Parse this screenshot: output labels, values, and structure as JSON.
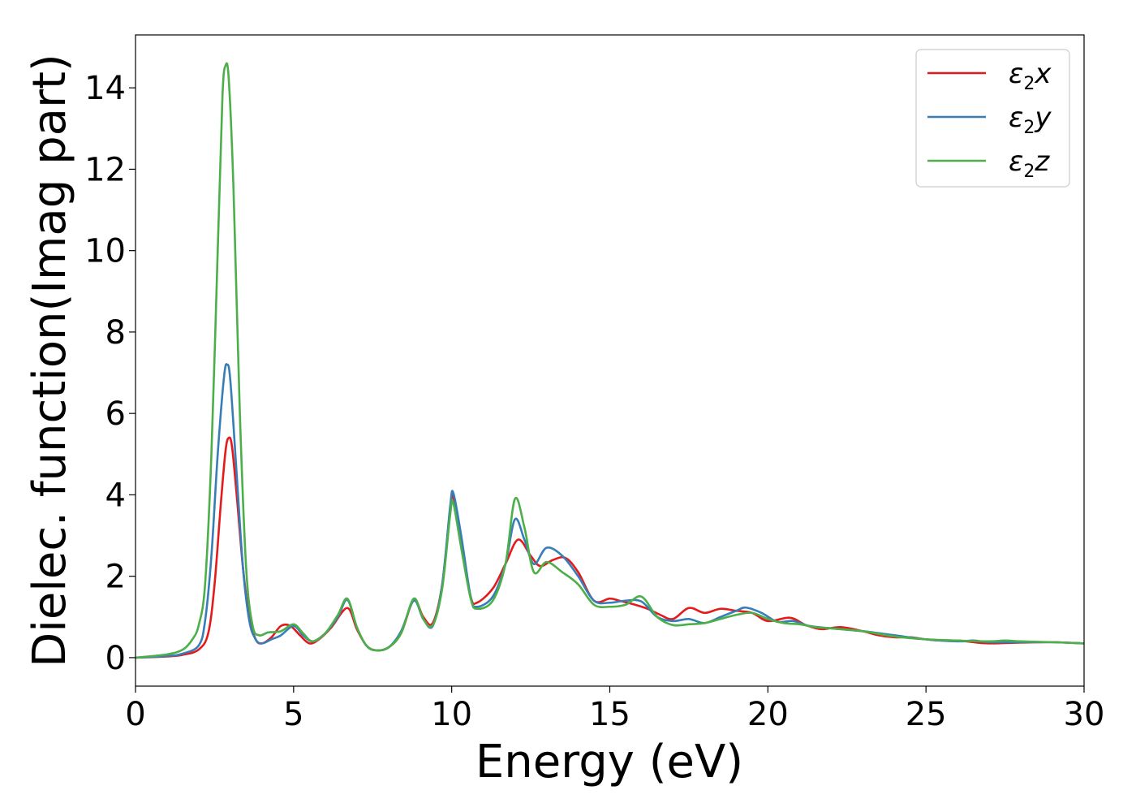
{
  "chart_data": {
    "type": "line",
    "xlabel": "Energy (eV)",
    "ylabel": "Dielec. function(Imag part)",
    "xlim": [
      0,
      30
    ],
    "ylim": [
      -0.7,
      15.3
    ],
    "xticks": [
      0,
      5,
      10,
      15,
      20,
      25,
      30
    ],
    "yticks": [
      0,
      2,
      4,
      6,
      8,
      10,
      12,
      14
    ],
    "grid": false,
    "legend_position": "top-right",
    "series": [
      {
        "name": "ε2x",
        "symbol": "ε",
        "sub": "2",
        "suffix": "x",
        "color": "#e41a1c",
        "points": [
          [
            0,
            0.0
          ],
          [
            1,
            0.03
          ],
          [
            1.5,
            0.07
          ],
          [
            2,
            0.2
          ],
          [
            2.3,
            0.6
          ],
          [
            2.5,
            1.8
          ],
          [
            2.7,
            3.8
          ],
          [
            2.85,
            5.1
          ],
          [
            2.95,
            5.4
          ],
          [
            3.05,
            5.2
          ],
          [
            3.2,
            4.0
          ],
          [
            3.4,
            2.2
          ],
          [
            3.6,
            1.0
          ],
          [
            3.8,
            0.45
          ],
          [
            4.0,
            0.35
          ],
          [
            4.3,
            0.5
          ],
          [
            4.6,
            0.78
          ],
          [
            4.9,
            0.78
          ],
          [
            5.2,
            0.55
          ],
          [
            5.5,
            0.35
          ],
          [
            5.8,
            0.45
          ],
          [
            6.2,
            0.75
          ],
          [
            6.7,
            1.22
          ],
          [
            7.0,
            0.7
          ],
          [
            7.3,
            0.3
          ],
          [
            7.6,
            0.18
          ],
          [
            8.0,
            0.25
          ],
          [
            8.4,
            0.6
          ],
          [
            8.8,
            1.42
          ],
          [
            9.1,
            1.0
          ],
          [
            9.4,
            0.85
          ],
          [
            9.7,
            1.8
          ],
          [
            9.95,
            3.6
          ],
          [
            10.05,
            3.95
          ],
          [
            10.3,
            2.8
          ],
          [
            10.6,
            1.5
          ],
          [
            10.8,
            1.35
          ],
          [
            11.3,
            1.7
          ],
          [
            11.7,
            2.3
          ],
          [
            12.1,
            2.9
          ],
          [
            12.5,
            2.5
          ],
          [
            12.8,
            2.25
          ],
          [
            13.2,
            2.4
          ],
          [
            13.6,
            2.45
          ],
          [
            14.0,
            2.1
          ],
          [
            14.5,
            1.4
          ],
          [
            15.0,
            1.45
          ],
          [
            15.3,
            1.4
          ],
          [
            15.8,
            1.3
          ],
          [
            16.2,
            1.2
          ],
          [
            16.6,
            1.05
          ],
          [
            17.0,
            0.95
          ],
          [
            17.5,
            1.22
          ],
          [
            18.0,
            1.1
          ],
          [
            18.5,
            1.2
          ],
          [
            19.0,
            1.15
          ],
          [
            19.5,
            1.1
          ],
          [
            20.0,
            0.9
          ],
          [
            20.7,
            0.98
          ],
          [
            21.2,
            0.8
          ],
          [
            21.7,
            0.7
          ],
          [
            22.3,
            0.75
          ],
          [
            23.0,
            0.65
          ],
          [
            23.5,
            0.55
          ],
          [
            24.0,
            0.5
          ],
          [
            24.5,
            0.5
          ],
          [
            25.0,
            0.45
          ],
          [
            25.5,
            0.42
          ],
          [
            26.0,
            0.42
          ],
          [
            26.5,
            0.38
          ],
          [
            27.0,
            0.35
          ],
          [
            28.0,
            0.37
          ],
          [
            29.0,
            0.38
          ],
          [
            30.0,
            0.35
          ]
        ]
      },
      {
        "name": "ε2y",
        "symbol": "ε",
        "sub": "2",
        "suffix": "y",
        "color": "#377eb8",
        "points": [
          [
            0,
            0.0
          ],
          [
            1,
            0.04
          ],
          [
            1.5,
            0.1
          ],
          [
            2,
            0.3
          ],
          [
            2.2,
            0.9
          ],
          [
            2.4,
            2.5
          ],
          [
            2.6,
            5.0
          ],
          [
            2.8,
            6.9
          ],
          [
            2.9,
            7.2
          ],
          [
            3.0,
            6.8
          ],
          [
            3.2,
            4.5
          ],
          [
            3.4,
            2.2
          ],
          [
            3.6,
            0.9
          ],
          [
            3.8,
            0.45
          ],
          [
            4.0,
            0.35
          ],
          [
            4.3,
            0.45
          ],
          [
            4.6,
            0.55
          ],
          [
            5.0,
            0.78
          ],
          [
            5.3,
            0.55
          ],
          [
            5.6,
            0.4
          ],
          [
            6.0,
            0.6
          ],
          [
            6.4,
            1.0
          ],
          [
            6.7,
            1.42
          ],
          [
            7.0,
            0.75
          ],
          [
            7.3,
            0.3
          ],
          [
            7.6,
            0.18
          ],
          [
            8.0,
            0.25
          ],
          [
            8.4,
            0.65
          ],
          [
            8.8,
            1.4
          ],
          [
            9.1,
            0.95
          ],
          [
            9.4,
            0.78
          ],
          [
            9.7,
            1.8
          ],
          [
            9.95,
            3.7
          ],
          [
            10.05,
            4.05
          ],
          [
            10.3,
            3.0
          ],
          [
            10.6,
            1.5
          ],
          [
            10.8,
            1.25
          ],
          [
            11.3,
            1.5
          ],
          [
            11.7,
            2.3
          ],
          [
            12.0,
            3.4
          ],
          [
            12.3,
            2.9
          ],
          [
            12.6,
            2.3
          ],
          [
            13.0,
            2.7
          ],
          [
            13.5,
            2.5
          ],
          [
            14.0,
            2.0
          ],
          [
            14.5,
            1.4
          ],
          [
            15.0,
            1.35
          ],
          [
            15.5,
            1.4
          ],
          [
            16.0,
            1.38
          ],
          [
            16.5,
            1.0
          ],
          [
            17.0,
            0.9
          ],
          [
            17.5,
            0.95
          ],
          [
            18.0,
            0.85
          ],
          [
            18.5,
            1.0
          ],
          [
            19.0,
            1.15
          ],
          [
            19.3,
            1.23
          ],
          [
            19.8,
            1.1
          ],
          [
            20.3,
            0.88
          ],
          [
            20.8,
            0.9
          ],
          [
            21.3,
            0.78
          ],
          [
            22.0,
            0.72
          ],
          [
            23.0,
            0.65
          ],
          [
            24.0,
            0.55
          ],
          [
            25.0,
            0.45
          ],
          [
            26.0,
            0.4
          ],
          [
            26.5,
            0.42
          ],
          [
            27.0,
            0.38
          ],
          [
            28.0,
            0.38
          ],
          [
            29.0,
            0.38
          ],
          [
            30.0,
            0.35
          ]
        ]
      },
      {
        "name": "ε2z",
        "symbol": "ε",
        "sub": "2",
        "suffix": "z",
        "color": "#4daf4a",
        "points": [
          [
            0,
            0.0
          ],
          [
            1,
            0.08
          ],
          [
            1.5,
            0.2
          ],
          [
            1.8,
            0.45
          ],
          [
            2.0,
            0.8
          ],
          [
            2.2,
            1.8
          ],
          [
            2.4,
            5.0
          ],
          [
            2.6,
            10.0
          ],
          [
            2.75,
            13.8
          ],
          [
            2.85,
            14.55
          ],
          [
            2.95,
            14.2
          ],
          [
            3.1,
            11.5
          ],
          [
            3.3,
            6.0
          ],
          [
            3.5,
            2.2
          ],
          [
            3.7,
            0.8
          ],
          [
            3.9,
            0.55
          ],
          [
            4.2,
            0.62
          ],
          [
            4.6,
            0.65
          ],
          [
            5.0,
            0.82
          ],
          [
            5.3,
            0.6
          ],
          [
            5.6,
            0.4
          ],
          [
            6.0,
            0.6
          ],
          [
            6.4,
            1.05
          ],
          [
            6.7,
            1.45
          ],
          [
            7.0,
            0.75
          ],
          [
            7.3,
            0.3
          ],
          [
            7.6,
            0.18
          ],
          [
            8.0,
            0.25
          ],
          [
            8.4,
            0.6
          ],
          [
            8.8,
            1.45
          ],
          [
            9.1,
            0.95
          ],
          [
            9.4,
            0.8
          ],
          [
            9.7,
            1.7
          ],
          [
            9.95,
            3.5
          ],
          [
            10.05,
            3.8
          ],
          [
            10.3,
            2.7
          ],
          [
            10.6,
            1.45
          ],
          [
            10.8,
            1.2
          ],
          [
            11.3,
            1.4
          ],
          [
            11.7,
            2.3
          ],
          [
            12.0,
            3.9
          ],
          [
            12.3,
            3.2
          ],
          [
            12.6,
            2.1
          ],
          [
            13.0,
            2.35
          ],
          [
            13.5,
            2.1
          ],
          [
            14.0,
            1.8
          ],
          [
            14.5,
            1.3
          ],
          [
            15.0,
            1.25
          ],
          [
            15.5,
            1.3
          ],
          [
            16.0,
            1.5
          ],
          [
            16.5,
            1.0
          ],
          [
            17.0,
            0.8
          ],
          [
            17.5,
            0.82
          ],
          [
            18.0,
            0.85
          ],
          [
            18.5,
            0.95
          ],
          [
            19.0,
            1.05
          ],
          [
            19.5,
            1.1
          ],
          [
            20.0,
            0.95
          ],
          [
            20.5,
            0.85
          ],
          [
            21.0,
            0.82
          ],
          [
            21.5,
            0.75
          ],
          [
            22.0,
            0.72
          ],
          [
            23.0,
            0.65
          ],
          [
            24.0,
            0.52
          ],
          [
            25.0,
            0.45
          ],
          [
            26.0,
            0.42
          ],
          [
            27.0,
            0.4
          ],
          [
            27.5,
            0.42
          ],
          [
            28.0,
            0.4
          ],
          [
            29.0,
            0.38
          ],
          [
            30.0,
            0.35
          ]
        ]
      }
    ]
  }
}
